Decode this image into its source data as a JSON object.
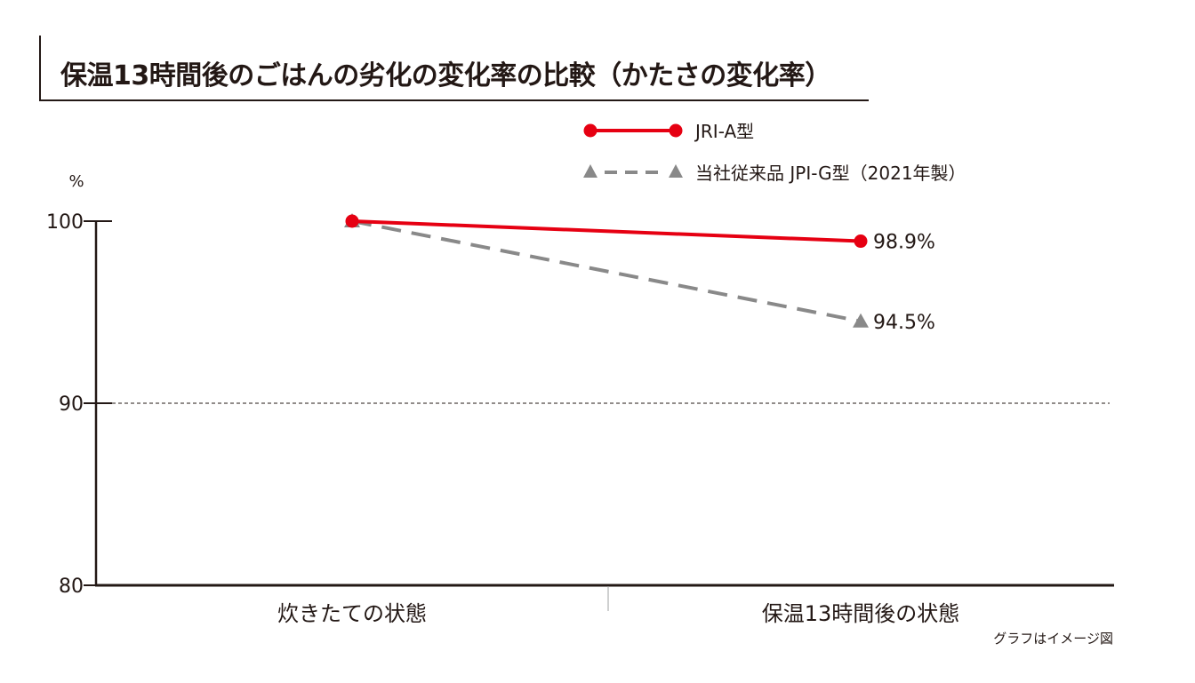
{
  "chart_data": {
    "type": "line",
    "title": "保温13時間後のごはんの劣化の変化率の比較（かたさの変化率）",
    "ylabel": "%",
    "ylim": [
      80,
      100
    ],
    "yticks": [
      "100",
      "90",
      "80"
    ],
    "categories": [
      "炊きたての状態",
      "保温13時間後の状態"
    ],
    "series": [
      {
        "name": "JRI-A型",
        "values": [
          100,
          98.9
        ],
        "color": "#e60012",
        "marker": "circle",
        "line": "solid",
        "end_label": "98.9%"
      },
      {
        "name": "当社従来品 JPI-G型（2021年製）",
        "values": [
          100,
          94.5
        ],
        "color": "#898989",
        "marker": "triangle",
        "line": "dashed",
        "end_label": "94.5%"
      }
    ],
    "reference_line": 90,
    "grid": false,
    "legend_position": "top-right",
    "note": "グラフはイメージ図"
  }
}
